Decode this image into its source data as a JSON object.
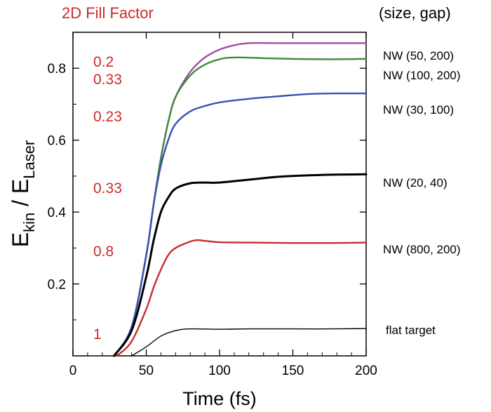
{
  "chart_data": {
    "type": "line",
    "fill_factor_header": "2D Fill Factor",
    "legend_header": "(size, gap)",
    "xlabel": "Time (fs)",
    "ylabel_main_1": "E",
    "ylabel_sub_1": "kin",
    "ylabel_slash": " / E",
    "ylabel_sub_2": "Laser",
    "xlim": [
      0,
      200
    ],
    "ylim": [
      0,
      0.9
    ],
    "xticks": [
      0,
      50,
      100,
      150,
      200
    ],
    "xtick_labels": [
      "0",
      "50",
      "100",
      "150",
      "200"
    ],
    "yticks": [
      0.2,
      0.4,
      0.6,
      0.8
    ],
    "ytick_labels": [
      "0.2",
      "0.4",
      "0.6",
      "0.8"
    ],
    "grid": false,
    "legend_placement": "right",
    "colors": {
      "header_red": "#cc2b2b",
      "fill_label_red": "#cc2b2b",
      "axis": "#000000"
    },
    "series": [
      {
        "name": "NW (50, 200)",
        "fill_factor": "0.2",
        "color": "#a24ca8",
        "final": 0.87,
        "t_mid": 60,
        "plateau_start": 118,
        "points": [
          [
            28,
            0.0
          ],
          [
            40,
            0.08
          ],
          [
            50,
            0.28
          ],
          [
            55,
            0.42
          ],
          [
            60,
            0.55
          ],
          [
            65,
            0.65
          ],
          [
            70,
            0.72
          ],
          [
            80,
            0.79
          ],
          [
            90,
            0.83
          ],
          [
            100,
            0.852
          ],
          [
            110,
            0.864
          ],
          [
            120,
            0.87
          ],
          [
            140,
            0.87
          ],
          [
            160,
            0.87
          ],
          [
            180,
            0.87
          ],
          [
            200,
            0.87
          ]
        ]
      },
      {
        "name": "NW (100, 200)",
        "fill_factor": "0.33",
        "color": "#3f8a3a",
        "final": 0.826,
        "t_mid": 60,
        "plateau_start": 105,
        "points": [
          [
            28,
            0.0
          ],
          [
            40,
            0.08
          ],
          [
            50,
            0.28
          ],
          [
            55,
            0.42
          ],
          [
            60,
            0.55
          ],
          [
            65,
            0.65
          ],
          [
            70,
            0.72
          ],
          [
            80,
            0.78
          ],
          [
            90,
            0.81
          ],
          [
            100,
            0.825
          ],
          [
            110,
            0.83
          ],
          [
            130,
            0.828
          ],
          [
            150,
            0.826
          ],
          [
            175,
            0.825
          ],
          [
            200,
            0.826
          ]
        ]
      },
      {
        "name": "NW (30, 100)",
        "fill_factor": "0.23",
        "color": "#3b4fb5",
        "final": 0.73,
        "t_mid": 58,
        "plateau_start": 90,
        "points": [
          [
            28,
            0.0
          ],
          [
            40,
            0.08
          ],
          [
            50,
            0.28
          ],
          [
            55,
            0.42
          ],
          [
            60,
            0.53
          ],
          [
            65,
            0.6
          ],
          [
            70,
            0.645
          ],
          [
            80,
            0.68
          ],
          [
            90,
            0.695
          ],
          [
            100,
            0.705
          ],
          [
            120,
            0.715
          ],
          [
            140,
            0.722
          ],
          [
            160,
            0.728
          ],
          [
            180,
            0.73
          ],
          [
            200,
            0.73
          ]
        ]
      },
      {
        "name": "NW (20, 40)",
        "fill_factor": "0.33",
        "color": "#000000",
        "final": 0.505,
        "t_mid": 58,
        "plateau_start": 80,
        "points": [
          [
            28,
            0.0
          ],
          [
            40,
            0.07
          ],
          [
            50,
            0.22
          ],
          [
            55,
            0.32
          ],
          [
            60,
            0.4
          ],
          [
            65,
            0.44
          ],
          [
            70,
            0.465
          ],
          [
            80,
            0.48
          ],
          [
            90,
            0.482
          ],
          [
            100,
            0.482
          ],
          [
            120,
            0.49
          ],
          [
            140,
            0.498
          ],
          [
            160,
            0.502
          ],
          [
            180,
            0.504
          ],
          [
            200,
            0.505
          ]
        ]
      },
      {
        "name": "NW (800, 200)",
        "fill_factor": "0.8",
        "color": "#cc2b2b",
        "final": 0.315,
        "t_mid": 60,
        "plateau_start": 84,
        "points": [
          [
            30,
            0.0
          ],
          [
            40,
            0.04
          ],
          [
            50,
            0.13
          ],
          [
            55,
            0.19
          ],
          [
            60,
            0.24
          ],
          [
            65,
            0.28
          ],
          [
            70,
            0.3
          ],
          [
            80,
            0.318
          ],
          [
            85,
            0.322
          ],
          [
            90,
            0.32
          ],
          [
            100,
            0.316
          ],
          [
            120,
            0.315
          ],
          [
            150,
            0.314
          ],
          [
            175,
            0.314
          ],
          [
            200,
            0.315
          ]
        ]
      },
      {
        "name": "flat target",
        "fill_factor": "1",
        "color": "#000000",
        "final": 0.075,
        "t_mid": 62,
        "plateau_start": 78,
        "points": [
          [
            40,
            0.0
          ],
          [
            50,
            0.025
          ],
          [
            60,
            0.055
          ],
          [
            70,
            0.07
          ],
          [
            80,
            0.075
          ],
          [
            100,
            0.074
          ],
          [
            120,
            0.075
          ],
          [
            150,
            0.075
          ],
          [
            175,
            0.075
          ],
          [
            200,
            0.076
          ]
        ]
      }
    ]
  }
}
